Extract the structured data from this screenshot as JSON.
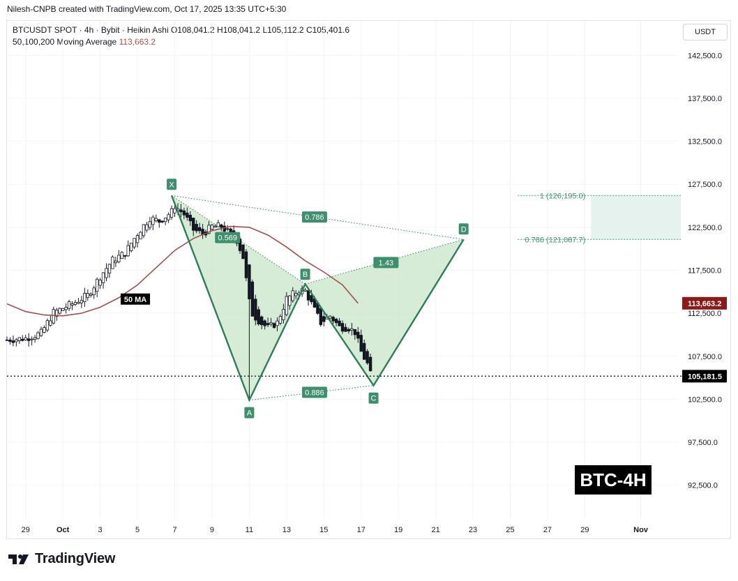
{
  "header": {
    "credit": "Nilesh-CNPB created with TradingView.com, Oct 17, 2025 13:35 UTC+5:30",
    "symbol_line": "BTCUSDT SPOT · 4h · Bybit · Heikin Ashi",
    "ohlc": {
      "o": "O108,041.2",
      "h": "H108,041.2",
      "l": "L105,112.2",
      "c": "C105,401.6"
    },
    "ma_label": "50,100,200 Moving Average",
    "ma_value": "113,663.2",
    "currency": "USDT"
  },
  "footer": {
    "brand": "TradingView"
  },
  "tag": "BTC-4H",
  "colors": {
    "up": "#131722",
    "down": "#131722",
    "ma": "#a0504a",
    "pattern_fill": "#c8e6c9",
    "pattern_line": "#2e7d57",
    "label_bg": "#3f8f6e",
    "price_line": "#131722",
    "ma_badge": "#8b1a1a"
  },
  "chart_data": {
    "type": "candlestick",
    "x_axis_labels": [
      {
        "label": "29",
        "date": "2025-09-29"
      },
      {
        "label": "Oct",
        "date": "2025-10-01"
      },
      {
        "label": "3",
        "date": "2025-10-03"
      },
      {
        "label": "5",
        "date": "2025-10-05"
      },
      {
        "label": "7",
        "date": "2025-10-07"
      },
      {
        "label": "9",
        "date": "2025-10-09"
      },
      {
        "label": "11",
        "date": "2025-10-11"
      },
      {
        "label": "13",
        "date": "2025-10-13"
      },
      {
        "label": "15",
        "date": "2025-10-15"
      },
      {
        "label": "17",
        "date": "2025-10-17"
      },
      {
        "label": "19",
        "date": "2025-10-19"
      },
      {
        "label": "21",
        "date": "2025-10-21"
      },
      {
        "label": "23",
        "date": "2025-10-23"
      },
      {
        "label": "25",
        "date": "2025-10-25"
      },
      {
        "label": "27",
        "date": "2025-10-27"
      },
      {
        "label": "29",
        "date": "2025-10-29"
      },
      {
        "label": "Nov",
        "date": "2025-11-01"
      }
    ],
    "y_ticks": [
      92500,
      97500,
      102500,
      107500,
      112500,
      117500,
      122500,
      127500,
      132500,
      137500,
      142500
    ],
    "y_tick_labels": [
      "92,500.0",
      "97,500.0",
      "102,500.0",
      "107,500.0",
      "112,500.0",
      "117,500.0",
      "122,500.0",
      "127,500.0",
      "132,500.0",
      "137,500.0",
      "142,500.0"
    ],
    "ylim": [
      88500,
      146500
    ],
    "xlim": [
      "2025-09-28T00:00",
      "2025-11-03T00:00"
    ],
    "current_price": 105181.5,
    "current_price_label": "105,181.5",
    "ma_last_label": "113,663.2",
    "ma_tag": "50 MA",
    "moving_average": [
      [
        "2025-09-28T00:00",
        113600
      ],
      [
        "2025-09-29T00:00",
        112700
      ],
      [
        "2025-09-30T00:00",
        112300
      ],
      [
        "2025-10-01T00:00",
        112200
      ],
      [
        "2025-10-02T00:00",
        112500
      ],
      [
        "2025-10-03T00:00",
        113200
      ],
      [
        "2025-10-04T00:00",
        114300
      ],
      [
        "2025-10-05T00:00",
        115800
      ],
      [
        "2025-10-06T00:00",
        117800
      ],
      [
        "2025-10-07T00:00",
        119800
      ],
      [
        "2025-10-08T00:00",
        121200
      ],
      [
        "2025-10-09T00:00",
        122100
      ],
      [
        "2025-10-10T00:00",
        122600
      ],
      [
        "2025-10-11T00:00",
        122500
      ],
      [
        "2025-10-12T00:00",
        121600
      ],
      [
        "2025-10-13T00:00",
        120200
      ],
      [
        "2025-10-14T00:00",
        118600
      ],
      [
        "2025-10-15T00:00",
        117300
      ],
      [
        "2025-10-16T00:00",
        115800
      ],
      [
        "2025-10-16T20:00",
        113663
      ]
    ],
    "candles_anchor_path": [
      [
        "2025-09-28T00:00",
        109400
      ],
      [
        "2025-09-29T00:00",
        109600
      ],
      [
        "2025-09-29T20:00",
        110200
      ],
      [
        "2025-09-30T12:00",
        112600
      ],
      [
        "2025-10-01T12:00",
        113600
      ],
      [
        "2025-10-02T08:00",
        114600
      ],
      [
        "2025-10-03T00:00",
        116800
      ],
      [
        "2025-10-03T16:00",
        118700
      ],
      [
        "2025-10-04T08:00",
        119500
      ],
      [
        "2025-10-05T00:00",
        121800
      ],
      [
        "2025-10-05T16:00",
        123600
      ],
      [
        "2025-10-06T04:00",
        123200
      ],
      [
        "2025-10-06T20:00",
        124300
      ],
      [
        "2025-10-07T00:00",
        125000
      ],
      [
        "2025-10-07T12:00",
        124000
      ],
      [
        "2025-10-08T00:00",
        122200
      ],
      [
        "2025-10-08T12:00",
        121700
      ],
      [
        "2025-10-09T00:00",
        122600
      ],
      [
        "2025-10-09T12:00",
        122600
      ],
      [
        "2025-10-10T00:00",
        121600
      ],
      [
        "2025-10-10T08:00",
        121000
      ],
      [
        "2025-10-10T16:00",
        119000
      ],
      [
        "2025-10-11T00:00",
        113800
      ],
      [
        "2025-10-11T04:00",
        112400
      ],
      [
        "2025-10-11T16:00",
        111300
      ],
      [
        "2025-10-12T00:00",
        110800
      ],
      [
        "2025-10-12T12:00",
        111400
      ],
      [
        "2025-10-13T00:00",
        114200
      ],
      [
        "2025-10-13T16:00",
        115200
      ],
      [
        "2025-10-14T00:00",
        115100
      ],
      [
        "2025-10-14T08:00",
        113600
      ],
      [
        "2025-10-14T20:00",
        111400
      ],
      [
        "2025-10-15T08:00",
        112200
      ],
      [
        "2025-10-15T20:00",
        110900
      ],
      [
        "2025-10-16T08:00",
        110800
      ],
      [
        "2025-10-16T16:00",
        110300
      ],
      [
        "2025-10-17T00:00",
        108000
      ],
      [
        "2025-10-17T08:00",
        106600
      ],
      [
        "2025-10-17T12:00",
        105400
      ]
    ],
    "pattern": {
      "points": [
        {
          "name": "X",
          "t": "2025-10-06T20:00",
          "price": 126195
        },
        {
          "name": "A",
          "t": "2025-10-11T00:00",
          "price": 102400
        },
        {
          "name": "B",
          "t": "2025-10-14T00:00",
          "price": 115900
        },
        {
          "name": "C",
          "t": "2025-10-17T16:00",
          "price": 104100
        },
        {
          "name": "D",
          "t": "2025-10-22T12:00",
          "price": 121087.7
        }
      ],
      "ratios": [
        {
          "label": "0.569",
          "t": "2025-10-09T20:00",
          "price": 121300
        },
        {
          "label": "0.886",
          "t": "2025-10-14T12:00",
          "price": 103300
        },
        {
          "label": "1.43",
          "t": "2025-10-18T08:00",
          "price": 118400
        },
        {
          "label": "0.786",
          "t": "2025-10-14T12:00",
          "price": 123700
        }
      ]
    },
    "target_zone": {
      "top": 126195.0,
      "bottom": 121087.7,
      "top_label": "1 (126,195.0)",
      "bottom_label": "0.786 (121,087.7)",
      "t_start": "2025-10-29T08:00"
    }
  }
}
